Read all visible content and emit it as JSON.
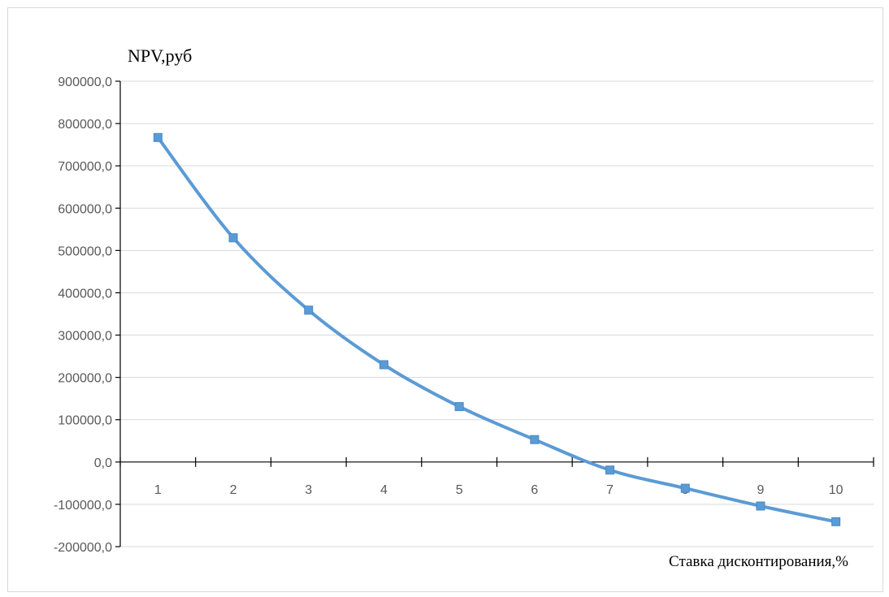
{
  "chart_data": {
    "type": "line",
    "title": "",
    "ylabel": "NPV,руб",
    "xlabel": "Ставка дисконтирования,%",
    "categories": [
      "1",
      "2",
      "3",
      "4",
      "5",
      "6",
      "7",
      "8",
      "9",
      "10"
    ],
    "series": [
      {
        "values": [
          767000,
          530000,
          359000,
          230000,
          131000,
          53000,
          -19000,
          -62000,
          -104000,
          -141000
        ],
        "color": "#5b9bd5"
      }
    ],
    "ylim": [
      -200000,
      900000
    ],
    "yticks": [
      900000,
      800000,
      700000,
      600000,
      500000,
      400000,
      300000,
      200000,
      100000,
      0,
      -100000,
      -200000
    ],
    "ytick_labels": [
      "900000,0",
      "800000,0",
      "700000,0",
      "600000,0",
      "500000,0",
      "400000,0",
      "300000,0",
      "200000,0",
      "100000,0",
      "0,0",
      "-100000,0",
      "-200000,0"
    ],
    "grid": true,
    "smooth": true,
    "marker": "square"
  }
}
